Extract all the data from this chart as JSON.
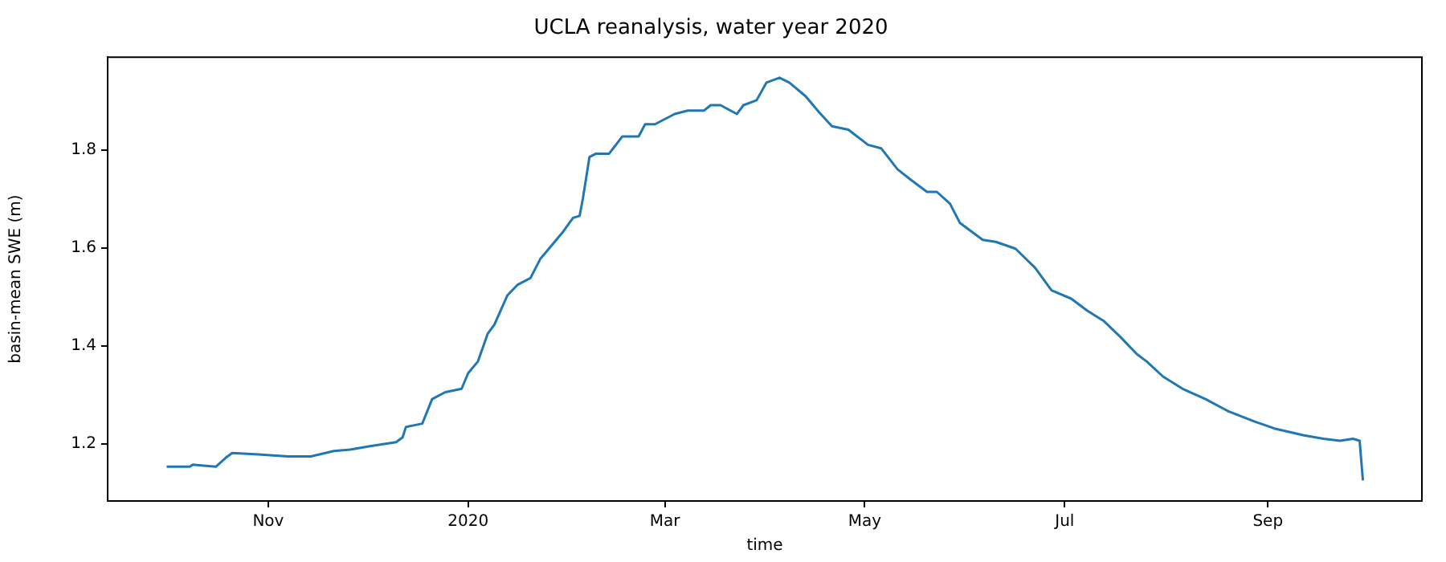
{
  "chart_data": {
    "type": "line",
    "title": "UCLA reanalysis, water year 2020",
    "xlabel": "time",
    "ylabel": "basin-mean SWE (m)",
    "x": [
      "2019-10-01",
      "2019-10-08",
      "2019-10-09",
      "2019-10-16",
      "2019-10-19",
      "2019-10-21",
      "2019-10-29",
      "2019-11-07",
      "2019-11-14",
      "2019-11-21",
      "2019-11-26",
      "2019-12-02",
      "2019-12-10",
      "2019-12-12",
      "2019-12-13",
      "2019-12-18",
      "2019-12-21",
      "2019-12-25",
      "2019-12-30",
      "2020-01-01",
      "2020-01-04",
      "2020-01-07",
      "2020-01-09",
      "2020-01-13",
      "2020-01-16",
      "2020-01-20",
      "2020-01-23",
      "2020-01-26",
      "2020-01-30",
      "2020-02-02",
      "2020-02-04",
      "2020-02-05",
      "2020-02-07",
      "2020-02-09",
      "2020-02-13",
      "2020-02-17",
      "2020-02-22",
      "2020-02-24",
      "2020-02-27",
      "2020-03-04",
      "2020-03-08",
      "2020-03-13",
      "2020-03-15",
      "2020-03-18",
      "2020-03-23",
      "2020-03-25",
      "2020-03-29",
      "2020-04-01",
      "2020-04-05",
      "2020-04-08",
      "2020-04-13",
      "2020-04-17",
      "2020-04-21",
      "2020-04-26",
      "2020-05-02",
      "2020-05-06",
      "2020-05-11",
      "2020-05-15",
      "2020-05-20",
      "2020-05-23",
      "2020-05-27",
      "2020-05-30",
      "2020-06-06",
      "2020-06-10",
      "2020-06-16",
      "2020-06-22",
      "2020-06-27",
      "2020-07-03",
      "2020-07-08",
      "2020-07-13",
      "2020-07-18",
      "2020-07-23",
      "2020-07-26",
      "2020-07-31",
      "2020-08-06",
      "2020-08-13",
      "2020-08-20",
      "2020-08-28",
      "2020-09-03",
      "2020-09-12",
      "2020-09-18",
      "2020-09-23",
      "2020-09-27",
      "2020-09-29",
      "2020-09-30"
    ],
    "series": [
      {
        "color": "#1f77b4",
        "values": [
          1.154,
          1.154,
          1.158,
          1.154,
          1.172,
          1.182,
          1.179,
          1.175,
          1.175,
          1.186,
          1.189,
          1.196,
          1.204,
          1.214,
          1.235,
          1.242,
          1.292,
          1.306,
          1.313,
          1.345,
          1.369,
          1.426,
          1.444,
          1.504,
          1.525,
          1.539,
          1.578,
          1.602,
          1.634,
          1.662,
          1.666,
          1.701,
          1.786,
          1.793,
          1.793,
          1.828,
          1.828,
          1.853,
          1.853,
          1.874,
          1.881,
          1.881,
          1.892,
          1.892,
          1.874,
          1.892,
          1.902,
          1.938,
          1.948,
          1.938,
          1.91,
          1.878,
          1.849,
          1.842,
          1.811,
          1.804,
          1.761,
          1.74,
          1.715,
          1.715,
          1.691,
          1.652,
          1.617,
          1.613,
          1.599,
          1.56,
          1.514,
          1.497,
          1.472,
          1.451,
          1.419,
          1.384,
          1.369,
          1.338,
          1.313,
          1.292,
          1.267,
          1.246,
          1.232,
          1.218,
          1.211,
          1.207,
          1.211,
          1.207,
          1.126
        ]
      }
    ],
    "xlim": [
      "2019-09-13",
      "2020-10-18"
    ],
    "xticks": [
      {
        "value": "2019-11-01",
        "label": "Nov"
      },
      {
        "value": "2020-01-01",
        "label": "2020"
      },
      {
        "value": "2020-03-01",
        "label": "Mar"
      },
      {
        "value": "2020-05-01",
        "label": "May"
      },
      {
        "value": "2020-07-01",
        "label": "Jul"
      },
      {
        "value": "2020-09-01",
        "label": "Sep"
      }
    ],
    "ylim": [
      1.084,
      1.99
    ],
    "yticks": [
      1.2,
      1.4,
      1.6,
      1.8
    ],
    "grid": false,
    "legend": false
  }
}
